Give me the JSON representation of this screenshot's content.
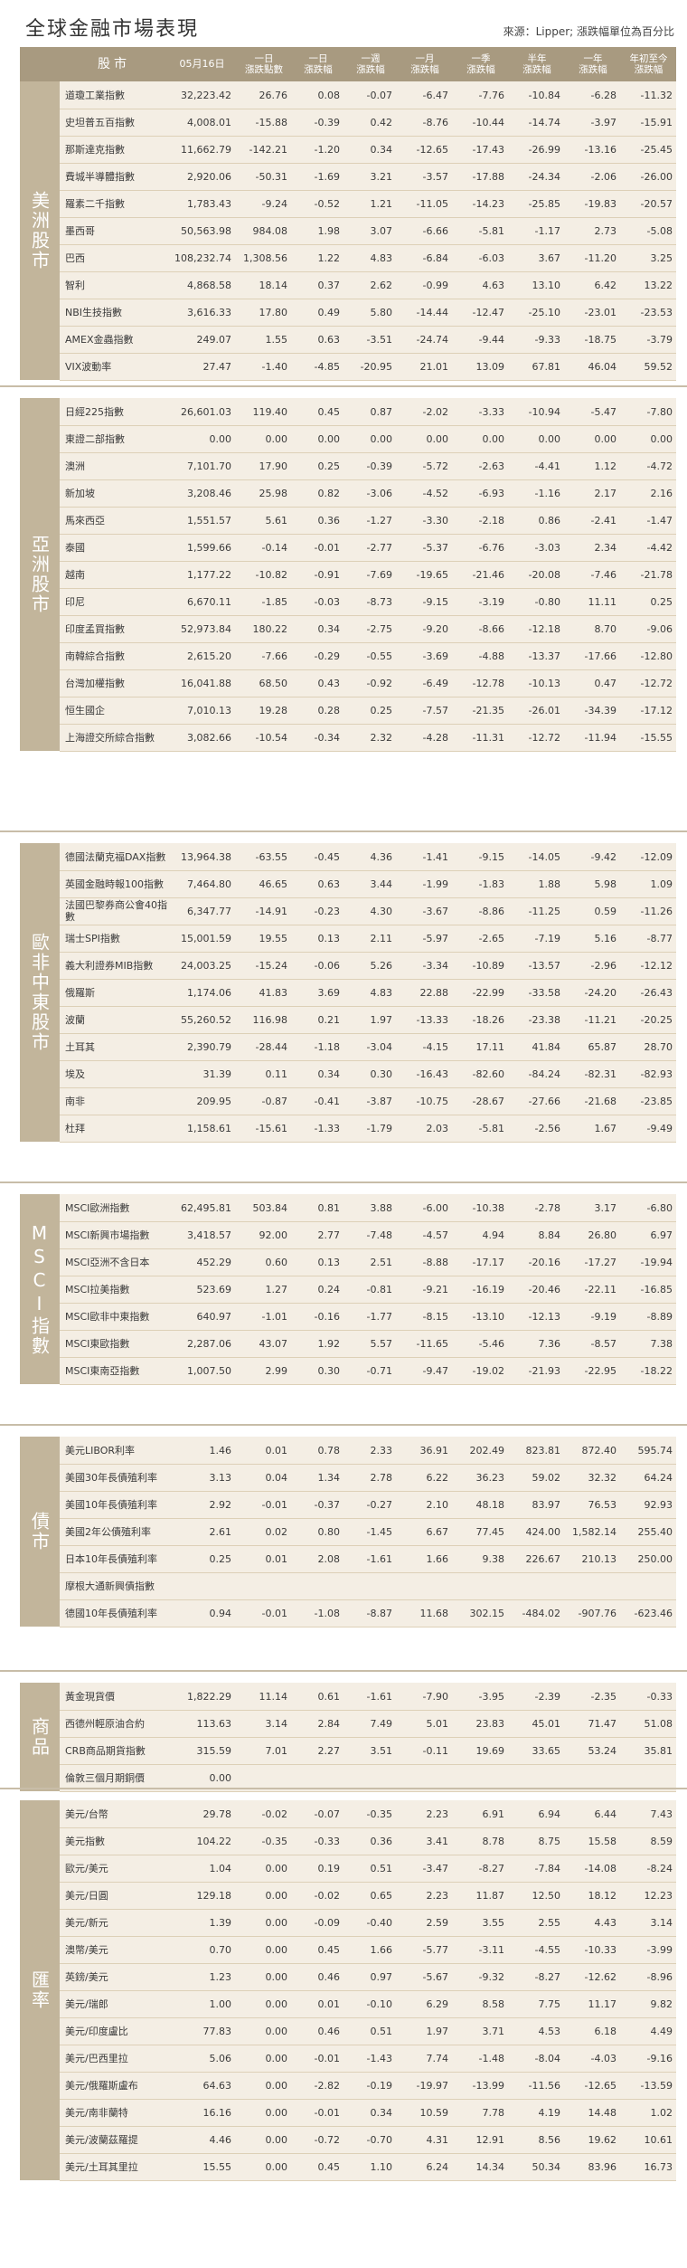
{
  "title": "全球金融市場表現",
  "source": "來源：Lipper; 漲跌幅單位為百分比",
  "columns": {
    "name": "股市",
    "date": "05月16日",
    "d1": [
      "一日",
      "漲跌點數"
    ],
    "d1p": [
      "一日",
      "漲跌幅"
    ],
    "w1": [
      "一週",
      "漲跌幅"
    ],
    "m1": [
      "一月",
      "漲跌幅"
    ],
    "q1": [
      "一季",
      "漲跌幅"
    ],
    "h1": [
      "半年",
      "漲跌幅"
    ],
    "y1": [
      "一年",
      "漲跌幅"
    ],
    "ytd": [
      "年初至今",
      "漲跌幅"
    ]
  },
  "sections": [
    {
      "category": "美洲股市",
      "rows": [
        [
          "道瓊工業指數",
          "32,223.42",
          "26.76",
          "0.08",
          "-0.07",
          "-6.47",
          "-7.76",
          "-10.84",
          "-6.28",
          "-11.32"
        ],
        [
          "史坦普五百指數",
          "4,008.01",
          "-15.88",
          "-0.39",
          "0.42",
          "-8.76",
          "-10.44",
          "-14.74",
          "-3.97",
          "-15.91"
        ],
        [
          "那斯達克指數",
          "11,662.79",
          "-142.21",
          "-1.20",
          "0.34",
          "-12.65",
          "-17.43",
          "-26.99",
          "-13.16",
          "-25.45"
        ],
        [
          "費城半導體指數",
          "2,920.06",
          "-50.31",
          "-1.69",
          "3.21",
          "-3.57",
          "-17.88",
          "-24.34",
          "-2.06",
          "-26.00"
        ],
        [
          "羅素二千指數",
          "1,783.43",
          "-9.24",
          "-0.52",
          "1.21",
          "-11.05",
          "-14.23",
          "-25.85",
          "-19.83",
          "-20.57"
        ],
        [
          "墨西哥",
          "50,563.98",
          "984.08",
          "1.98",
          "3.07",
          "-6.66",
          "-5.81",
          "-1.17",
          "2.73",
          "-5.08"
        ],
        [
          "巴西",
          "108,232.74",
          "1,308.56",
          "1.22",
          "4.83",
          "-6.84",
          "-6.03",
          "3.67",
          "-11.20",
          "3.25"
        ],
        [
          "智利",
          "4,868.58",
          "18.14",
          "0.37",
          "2.62",
          "-0.99",
          "4.63",
          "13.10",
          "6.42",
          "13.22"
        ],
        [
          "NBI生技指數",
          "3,616.33",
          "17.80",
          "0.49",
          "5.80",
          "-14.44",
          "-12.47",
          "-25.10",
          "-23.01",
          "-23.53"
        ],
        [
          "AMEX金蟲指數",
          "249.07",
          "1.55",
          "0.63",
          "-3.51",
          "-24.74",
          "-9.44",
          "-9.33",
          "-18.75",
          "-3.79"
        ],
        [
          "VIX波動率",
          "27.47",
          "-1.40",
          "-4.85",
          "-20.95",
          "21.01",
          "13.09",
          "67.81",
          "46.04",
          "59.52"
        ]
      ]
    },
    {
      "category": "亞洲股市",
      "rows": [
        [
          "日經225指數",
          "26,601.03",
          "119.40",
          "0.45",
          "0.87",
          "-2.02",
          "-3.33",
          "-10.94",
          "-5.47",
          "-7.80"
        ],
        [
          "東證二部指數",
          "0.00",
          "0.00",
          "0.00",
          "0.00",
          "0.00",
          "0.00",
          "0.00",
          "0.00",
          "0.00"
        ],
        [
          "澳洲",
          "7,101.70",
          "17.90",
          "0.25",
          "-0.39",
          "-5.72",
          "-2.63",
          "-4.41",
          "1.12",
          "-4.72"
        ],
        [
          "新加坡",
          "3,208.46",
          "25.98",
          "0.82",
          "-3.06",
          "-4.52",
          "-6.93",
          "-1.16",
          "2.17",
          "2.16"
        ],
        [
          "馬來西亞",
          "1,551.57",
          "5.61",
          "0.36",
          "-1.27",
          "-3.30",
          "-2.18",
          "0.86",
          "-2.41",
          "-1.47"
        ],
        [
          "泰國",
          "1,599.66",
          "-0.14",
          "-0.01",
          "-2.77",
          "-5.37",
          "-6.76",
          "-3.03",
          "2.34",
          "-4.42"
        ],
        [
          "越南",
          "1,177.22",
          "-10.82",
          "-0.91",
          "-7.69",
          "-19.65",
          "-21.46",
          "-20.08",
          "-7.46",
          "-21.78"
        ],
        [
          "印尼",
          "6,670.11",
          "-1.85",
          "-0.03",
          "-8.73",
          "-9.15",
          "-3.19",
          "-0.80",
          "11.11",
          "0.25"
        ],
        [
          "印度孟買指數",
          "52,973.84",
          "180.22",
          "0.34",
          "-2.75",
          "-9.20",
          "-8.66",
          "-12.18",
          "8.70",
          "-9.06"
        ],
        [
          "南韓綜合指數",
          "2,615.20",
          "-7.66",
          "-0.29",
          "-0.55",
          "-3.69",
          "-4.88",
          "-13.37",
          "-17.66",
          "-12.80"
        ],
        [
          "台灣加權指數",
          "16,041.88",
          "68.50",
          "0.43",
          "-0.92",
          "-6.49",
          "-12.78",
          "-10.13",
          "0.47",
          "-12.72"
        ],
        [
          "恒生國企",
          "7,010.13",
          "19.28",
          "0.28",
          "0.25",
          "-7.57",
          "-21.35",
          "-26.01",
          "-34.39",
          "-17.12"
        ],
        [
          "上海證交所綜合指數",
          "3,082.66",
          "-10.54",
          "-0.34",
          "2.32",
          "-4.28",
          "-11.31",
          "-12.72",
          "-11.94",
          "-15.55"
        ]
      ]
    },
    {
      "category": "歐非中東股市",
      "rows": [
        [
          "德國法蘭克福DAX指數",
          "13,964.38",
          "-63.55",
          "-0.45",
          "4.36",
          "-1.41",
          "-9.15",
          "-14.05",
          "-9.42",
          "-12.09"
        ],
        [
          "英國金融時報100指數",
          "7,464.80",
          "46.65",
          "0.63",
          "3.44",
          "-1.99",
          "-1.83",
          "1.88",
          "5.98",
          "1.09"
        ],
        [
          "法國巴黎券商公會40指數",
          "6,347.77",
          "-14.91",
          "-0.23",
          "4.30",
          "-3.67",
          "-8.86",
          "-11.25",
          "0.59",
          "-11.26"
        ],
        [
          "瑞士SPI指數",
          "15,001.59",
          "19.55",
          "0.13",
          "2.11",
          "-5.97",
          "-2.65",
          "-7.19",
          "5.16",
          "-8.77"
        ],
        [
          "義大利證券MIB指數",
          "24,003.25",
          "-15.24",
          "-0.06",
          "5.26",
          "-3.34",
          "-10.89",
          "-13.57",
          "-2.96",
          "-12.12"
        ],
        [
          "俄羅斯",
          "1,174.06",
          "41.83",
          "3.69",
          "4.83",
          "22.88",
          "-22.99",
          "-33.58",
          "-24.20",
          "-26.43"
        ],
        [
          "波蘭",
          "55,260.52",
          "116.98",
          "0.21",
          "1.97",
          "-13.33",
          "-18.26",
          "-23.38",
          "-11.21",
          "-20.25"
        ],
        [
          "土耳其",
          "2,390.79",
          "-28.44",
          "-1.18",
          "-3.04",
          "-4.15",
          "17.11",
          "41.84",
          "65.87",
          "28.70"
        ],
        [
          "埃及",
          "31.39",
          "0.11",
          "0.34",
          "0.30",
          "-16.43",
          "-82.60",
          "-84.24",
          "-82.31",
          "-82.93"
        ],
        [
          "南非",
          "209.95",
          "-0.87",
          "-0.41",
          "-3.87",
          "-10.75",
          "-28.67",
          "-27.66",
          "-21.68",
          "-23.85"
        ],
        [
          "杜拜",
          "1,158.61",
          "-15.61",
          "-1.33",
          "-1.79",
          "2.03",
          "-5.81",
          "-2.56",
          "1.67",
          "-9.49"
        ]
      ]
    },
    {
      "category": "MSCI指數",
      "rows": [
        [
          "MSCI歐洲指數",
          "62,495.81",
          "503.84",
          "0.81",
          "3.88",
          "-6.00",
          "-10.38",
          "-2.78",
          "3.17",
          "-6.80"
        ],
        [
          "MSCI新興市場指數",
          "3,418.57",
          "92.00",
          "2.77",
          "-7.48",
          "-4.57",
          "4.94",
          "8.84",
          "26.80",
          "6.97"
        ],
        [
          "MSCI亞洲不含日本",
          "452.29",
          "0.60",
          "0.13",
          "2.51",
          "-8.88",
          "-17.17",
          "-20.16",
          "-17.27",
          "-19.94"
        ],
        [
          "MSCI拉美指數",
          "523.69",
          "1.27",
          "0.24",
          "-0.81",
          "-9.21",
          "-16.19",
          "-20.46",
          "-22.11",
          "-16.85"
        ],
        [
          "MSCI歐非中東指數",
          "640.97",
          "-1.01",
          "-0.16",
          "-1.77",
          "-8.15",
          "-13.10",
          "-12.13",
          "-9.19",
          "-8.89"
        ],
        [
          "MSCI東歐指數",
          "2,287.06",
          "43.07",
          "1.92",
          "5.57",
          "-11.65",
          "-5.46",
          "7.36",
          "-8.57",
          "7.38"
        ],
        [
          "MSCI東南亞指數",
          "1,007.50",
          "2.99",
          "0.30",
          "-0.71",
          "-9.47",
          "-19.02",
          "-21.93",
          "-22.95",
          "-18.22"
        ]
      ]
    },
    {
      "category": "債市",
      "rows": [
        [
          "美元LIBOR利率",
          "1.46",
          "0.01",
          "0.78",
          "2.33",
          "36.91",
          "202.49",
          "823.81",
          "872.40",
          "595.74"
        ],
        [
          "美國30年長債殖利率",
          "3.13",
          "0.04",
          "1.34",
          "2.78",
          "6.22",
          "36.23",
          "59.02",
          "32.32",
          "64.24"
        ],
        [
          "美國10年長債殖利率",
          "2.92",
          "-0.01",
          "-0.37",
          "-0.27",
          "2.10",
          "48.18",
          "83.97",
          "76.53",
          "92.93"
        ],
        [
          "美國2年公債殖利率",
          "2.61",
          "0.02",
          "0.80",
          "-1.45",
          "6.67",
          "77.45",
          "424.00",
          "1,582.14",
          "255.40"
        ],
        [
          "日本10年長債殖利率",
          "0.25",
          "0.01",
          "2.08",
          "-1.61",
          "1.66",
          "9.38",
          "226.67",
          "210.13",
          "250.00"
        ],
        [
          "摩根大通新興債指數",
          "",
          "",
          "",
          "",
          "",
          "",
          "",
          "",
          ""
        ],
        [
          "德國10年長債殖利率",
          "0.94",
          "-0.01",
          "-1.08",
          "-8.87",
          "11.68",
          "302.15",
          "-484.02",
          "-907.76",
          "-623.46"
        ]
      ]
    },
    {
      "category": "商品",
      "rows": [
        [
          "黃金現貨價",
          "1,822.29",
          "11.14",
          "0.61",
          "-1.61",
          "-7.90",
          "-3.95",
          "-2.39",
          "-2.35",
          "-0.33"
        ],
        [
          "西德州輕原油合約",
          "113.63",
          "3.14",
          "2.84",
          "7.49",
          "5.01",
          "23.83",
          "45.01",
          "71.47",
          "51.08"
        ],
        [
          "CRB商品期貨指數",
          "315.59",
          "7.01",
          "2.27",
          "3.51",
          "-0.11",
          "19.69",
          "33.65",
          "53.24",
          "35.81"
        ],
        [
          "倫敦三個月期銅價",
          "0.00",
          "",
          "",
          "",
          "",
          "",
          "",
          "",
          ""
        ]
      ]
    },
    {
      "category": "匯率",
      "rows": [
        [
          "美元/台幣",
          "29.78",
          "-0.02",
          "-0.07",
          "-0.35",
          "2.23",
          "6.91",
          "6.94",
          "6.44",
          "7.43"
        ],
        [
          "美元指數",
          "104.22",
          "-0.35",
          "-0.33",
          "0.36",
          "3.41",
          "8.78",
          "8.75",
          "15.58",
          "8.59"
        ],
        [
          "歐元/美元",
          "1.04",
          "0.00",
          "0.19",
          "0.51",
          "-3.47",
          "-8.27",
          "-7.84",
          "-14.08",
          "-8.24"
        ],
        [
          "美元/日圓",
          "129.18",
          "0.00",
          "-0.02",
          "0.65",
          "2.23",
          "11.87",
          "12.50",
          "18.12",
          "12.23"
        ],
        [
          "美元/新元",
          "1.39",
          "0.00",
          "-0.09",
          "-0.40",
          "2.59",
          "3.55",
          "2.55",
          "4.43",
          "3.14"
        ],
        [
          "澳幣/美元",
          "0.70",
          "0.00",
          "0.45",
          "1.66",
          "-5.77",
          "-3.11",
          "-4.55",
          "-10.33",
          "-3.99"
        ],
        [
          "英鎊/美元",
          "1.23",
          "0.00",
          "0.46",
          "0.97",
          "-5.67",
          "-9.32",
          "-8.27",
          "-12.62",
          "-8.96"
        ],
        [
          "美元/瑞郎",
          "1.00",
          "0.00",
          "0.01",
          "-0.10",
          "6.29",
          "8.58",
          "7.75",
          "11.17",
          "9.82"
        ],
        [
          "美元/印度盧比",
          "77.83",
          "0.00",
          "0.46",
          "0.51",
          "1.97",
          "3.71",
          "4.53",
          "6.18",
          "4.49"
        ],
        [
          "美元/巴西里拉",
          "5.06",
          "0.00",
          "-0.01",
          "-1.43",
          "7.74",
          "-1.48",
          "-8.04",
          "-4.03",
          "-9.16"
        ],
        [
          "美元/俄羅斯盧布",
          "64.63",
          "0.00",
          "-2.82",
          "-0.19",
          "-19.97",
          "-13.99",
          "-11.56",
          "-12.65",
          "-13.59"
        ],
        [
          "美元/南非蘭特",
          "16.16",
          "0.00",
          "-0.01",
          "0.34",
          "10.59",
          "7.78",
          "4.19",
          "14.48",
          "1.02"
        ],
        [
          "美元/波蘭茲羅提",
          "4.46",
          "0.00",
          "-0.72",
          "-0.70",
          "4.31",
          "12.91",
          "8.56",
          "19.62",
          "10.61"
        ],
        [
          "美元/土耳其里拉",
          "15.55",
          "0.00",
          "0.45",
          "1.10",
          "6.24",
          "14.34",
          "50.34",
          "83.96",
          "16.73"
        ]
      ]
    }
  ]
}
